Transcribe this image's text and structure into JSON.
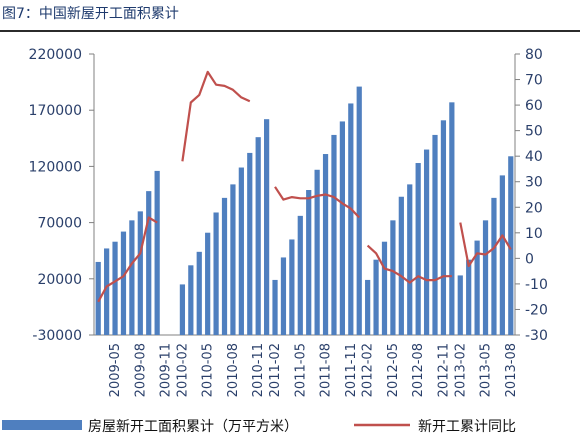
{
  "figure_title": "图7：中国新屋开工面积累计",
  "colors": {
    "bar": "#4f7fbf",
    "line": "#c0504d",
    "axis": "#808080",
    "text": "#2a3f6a"
  },
  "chart_data": {
    "type": "bar",
    "categories": [
      "2009-03",
      "2009-04",
      "2009-05",
      "2009-06",
      "2009-07",
      "2009-08",
      "2009-09",
      "2009-10",
      "2009-11",
      "2009-12",
      "2010-02",
      "2010-03",
      "2010-04",
      "2010-05",
      "2010-06",
      "2010-07",
      "2010-08",
      "2010-09",
      "2010-10",
      "2010-11",
      "2010-12",
      "2011-02",
      "2011-03",
      "2011-04",
      "2011-05",
      "2011-06",
      "2011-07",
      "2011-08",
      "2011-09",
      "2011-10",
      "2011-11",
      "2011-12",
      "2012-02",
      "2012-03",
      "2012-04",
      "2012-05",
      "2012-06",
      "2012-07",
      "2012-08",
      "2012-09",
      "2012-10",
      "2012-11",
      "2012-12",
      "2013-02",
      "2013-03",
      "2013-04",
      "2013-05",
      "2013-06",
      "2013-07",
      "2013-08"
    ],
    "x_tick_labels": [
      "2009-05",
      "2009-08",
      "2009-11",
      "2010-02",
      "2010-05",
      "2010-08",
      "2010-11",
      "2011-02",
      "2011-05",
      "2011-08",
      "2011-11",
      "2012-02",
      "2012-05",
      "2012-08",
      "2012-11",
      "2013-02",
      "2013-05",
      "2013-08"
    ],
    "series": [
      {
        "name": "房屋新开工面积累计（万平方米）",
        "axis": "left",
        "type": "bar",
        "values": [
          35000,
          47000,
          53000,
          62000,
          72000,
          80000,
          98000,
          116000,
          null,
          null,
          15000,
          32000,
          44000,
          61000,
          79000,
          92000,
          104000,
          119000,
          132000,
          146000,
          162000,
          19000,
          39000,
          55000,
          76000,
          99000,
          117000,
          131000,
          148000,
          160000,
          176000,
          191000,
          19000,
          37000,
          53000,
          72000,
          93000,
          104000,
          123000,
          135000,
          148000,
          161000,
          177000,
          23000,
          37000,
          54000,
          72000,
          92000,
          112000,
          129000
        ]
      },
      {
        "name": "新开工累计同比",
        "axis": "right",
        "type": "line",
        "values": [
          -17,
          -11,
          -9,
          -7,
          -2,
          2,
          16,
          14,
          null,
          null,
          38,
          61,
          64,
          73,
          68,
          67.5,
          66,
          63,
          61.5,
          null,
          null,
          28,
          23,
          24,
          23.5,
          23.5,
          24.5,
          25,
          24,
          21.5,
          19.5,
          16,
          5,
          2,
          -4,
          -5,
          -7,
          -9.5,
          -7,
          -8.5,
          -8.5,
          -7,
          -7,
          14,
          -3,
          2,
          1.5,
          4,
          9,
          3.5
        ]
      }
    ],
    "y_left": {
      "min": -30000,
      "max": 220000,
      "ticks": [
        "-30000",
        "20000",
        "70000",
        "120000",
        "170000",
        "220000"
      ]
    },
    "y_right": {
      "min": -30,
      "max": 80,
      "ticks": [
        "-30",
        "-20",
        "-10",
        "0",
        "10",
        "20",
        "30",
        "40",
        "50",
        "60",
        "70",
        "80"
      ]
    },
    "grid": false,
    "legend_position": "bottom"
  }
}
